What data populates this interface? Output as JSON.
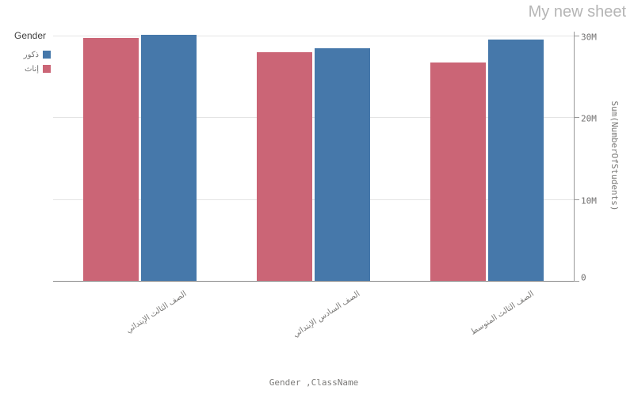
{
  "sheet": {
    "title": "My new sheet"
  },
  "legend": {
    "title": "Gender",
    "items": [
      {
        "label": "ذكور",
        "color": "#4678aa"
      },
      {
        "label": "إناث",
        "color": "#cb6576"
      }
    ]
  },
  "chart_data": {
    "type": "bar",
    "title": "",
    "categories": [
      "الصف الثالث الإبتدائي",
      "الصف السادس الإبتدائي",
      "الصف الثالث المتوسط"
    ],
    "series": [
      {
        "name": "إناث",
        "color": "#cb6576",
        "values": [
          29.7,
          28.0,
          26.7
        ]
      },
      {
        "name": "ذكور",
        "color": "#4678aa",
        "values": [
          30.1,
          28.5,
          29.5
        ]
      }
    ],
    "value_unit": "M",
    "xlabel": "Gender ,ClassName",
    "ylabel": "Sum(NumberOfStudents)",
    "ylim": [
      0,
      30
    ],
    "yticks": [
      {
        "value": 0,
        "label": "0"
      },
      {
        "value": 10,
        "label": "10M"
      },
      {
        "value": 20,
        "label": "20M"
      },
      {
        "value": 30,
        "label": "30M"
      }
    ],
    "grid": true,
    "legend_position": "top-left",
    "value_axis_side": "right"
  }
}
